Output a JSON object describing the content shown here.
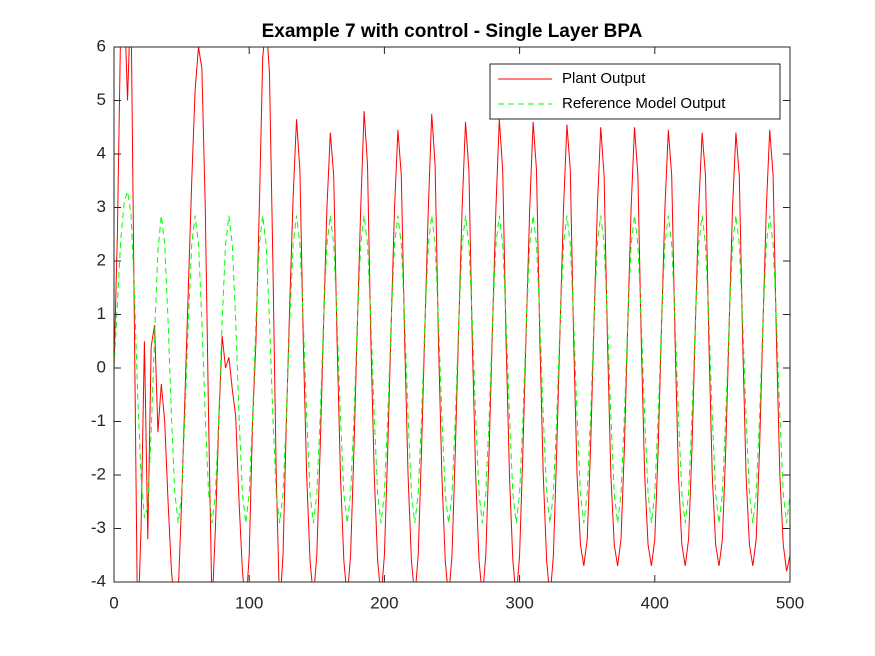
{
  "chart_data": {
    "type": "line",
    "title": "Example 7 with control - Single Layer BPA",
    "x": [
      0,
      2.5,
      5,
      7.5,
      10,
      12.5,
      15,
      17.5,
      20,
      22.5,
      25,
      27.5,
      30,
      32.5,
      35,
      37.5,
      40,
      42.5,
      45,
      47.5,
      50,
      52.5,
      55,
      57.5,
      60,
      62.5,
      65,
      67.5,
      70,
      72.5,
      75,
      77.5,
      80,
      82.5,
      85,
      87.5,
      90,
      92.5,
      95,
      97.5,
      100,
      102.5,
      105,
      107.5,
      110,
      112.5,
      115,
      117.5,
      120,
      122.5,
      125,
      127.5,
      130,
      132.5,
      135,
      137.5,
      140,
      142.5,
      145,
      147.5,
      150,
      152.5,
      155,
      157.5,
      160,
      162.5,
      165,
      167.5,
      170,
      172.5,
      175,
      177.5,
      180,
      182.5,
      185,
      187.5,
      190,
      192.5,
      195,
      197.5,
      200,
      202.5,
      205,
      207.5,
      210,
      212.5,
      215,
      217.5,
      220,
      222.5,
      225,
      227.5,
      230,
      232.5,
      235,
      237.5,
      240,
      242.5,
      245,
      247.5,
      250,
      252.5,
      255,
      257.5,
      260,
      262.5,
      265,
      267.5,
      270,
      272.5,
      275,
      277.5,
      280,
      282.5,
      285,
      287.5,
      290,
      292.5,
      295,
      297.5,
      300,
      302.5,
      305,
      307.5,
      310,
      312.5,
      315,
      317.5,
      320,
      322.5,
      325,
      327.5,
      330,
      332.5,
      335,
      337.5,
      340,
      342.5,
      345,
      347.5,
      350,
      352.5,
      355,
      357.5,
      360,
      362.5,
      365,
      367.5,
      370,
      372.5,
      375,
      377.5,
      380,
      382.5,
      385,
      387.5,
      390,
      392.5,
      395,
      397.5,
      400,
      402.5,
      405,
      407.5,
      410,
      412.5,
      415,
      417.5,
      420,
      422.5,
      425,
      427.5,
      430,
      432.5,
      435,
      437.5,
      440,
      442.5,
      445,
      447.5,
      450,
      452.5,
      455,
      457.5,
      460,
      462.5,
      465,
      467.5,
      470,
      472.5,
      475,
      477.5,
      480,
      482.5,
      485,
      487.5,
      490,
      492.5,
      495,
      497.5,
      500
    ],
    "series": [
      {
        "name": "Plant Output",
        "color": "#ff0000",
        "dash": "solid",
        "values": [
          0,
          2.5,
          6.5,
          7,
          5,
          7,
          1,
          -5,
          -3,
          0.5,
          -3.2,
          0.4,
          0.8,
          -1.2,
          -0.3,
          -1,
          -2.5,
          -3.8,
          -4.5,
          -4.2,
          -2.5,
          -0.5,
          1.5,
          3.5,
          5.2,
          6,
          5.6,
          3,
          -1,
          -4.5,
          -3,
          -1,
          0.6,
          0,
          0.2,
          -0.4,
          -0.9,
          -2.5,
          -3.8,
          -4.5,
          -3.5,
          -1,
          0.5,
          3,
          5.8,
          6.5,
          5.5,
          2,
          -2,
          -4.5,
          -3.5,
          -1,
          1.2,
          3.2,
          4.65,
          3.7,
          0.5,
          -2,
          -3.6,
          -4.3,
          -3.5,
          -1.5,
          0.8,
          3,
          4.4,
          3.6,
          0.5,
          -2,
          -3.6,
          -4.3,
          -3.5,
          -1.5,
          0.8,
          3,
          4.8,
          3.8,
          0.5,
          -2,
          -3.6,
          -4.3,
          -3.5,
          -1.5,
          0.8,
          3,
          4.45,
          3.6,
          0.5,
          -2,
          -3.6,
          -4.3,
          -3.5,
          -1.5,
          0.8,
          3,
          4.75,
          3.8,
          0.5,
          -2,
          -3.6,
          -4.3,
          -3.5,
          -1.5,
          0.8,
          3,
          4.6,
          3.7,
          0.5,
          -2,
          -3.6,
          -4.3,
          -3.5,
          -1.5,
          0.8,
          3,
          4.65,
          3.7,
          0.5,
          -2,
          -3.6,
          -4.3,
          -3.5,
          -1.5,
          0.8,
          3,
          4.6,
          3.7,
          0.5,
          -2,
          -3.6,
          -4.3,
          -3.5,
          -1.5,
          0.8,
          3,
          4.55,
          3.7,
          0.5,
          -2,
          -3.3,
          -3.7,
          -3.2,
          -1.5,
          0.8,
          3,
          4.5,
          3.6,
          0.5,
          -2,
          -3.3,
          -3.7,
          -3.2,
          -1.5,
          0.8,
          3,
          4.5,
          3.6,
          0.5,
          -2,
          -3.3,
          -3.7,
          -3.2,
          -1.5,
          0.8,
          3,
          4.45,
          3.6,
          0.5,
          -2,
          -3.3,
          -3.7,
          -3.2,
          -1.5,
          0.8,
          3,
          4.4,
          3.6,
          0.5,
          -2,
          -3.3,
          -3.7,
          -3.2,
          -1.5,
          0.8,
          3,
          4.4,
          3.6,
          0.5,
          -2,
          -3.3,
          -3.7,
          -3.2,
          -1.5,
          0.8,
          3,
          4.45,
          3.6,
          0.5,
          -2,
          -3.3,
          -3.8,
          -3.5
        ]
      },
      {
        "name": "Reference Model Output",
        "color": "#00ff00",
        "dash": "dashed",
        "values": [
          0,
          1.2,
          2.4,
          3.1,
          3.3,
          2.9,
          1.5,
          -0.5,
          -2.0,
          -2.8,
          -2.6,
          -1.2,
          0.6,
          2.2,
          2.85,
          2.31,
          0.88,
          -0.9,
          -2.35,
          -2.9,
          -2.35,
          -0.9,
          0.88,
          2.31,
          2.85,
          2.31,
          0.88,
          -0.9,
          -2.35,
          -2.9,
          -2.35,
          -0.9,
          0.88,
          2.31,
          2.85,
          2.31,
          0.88,
          -0.9,
          -2.35,
          -2.9,
          -2.35,
          -0.9,
          0.88,
          2.31,
          2.85,
          2.31,
          0.88,
          -0.9,
          -2.35,
          -2.9,
          -2.35,
          -0.9,
          0.88,
          2.31,
          2.85,
          2.31,
          0.88,
          -0.9,
          -2.35,
          -2.9,
          -2.35,
          -0.9,
          0.88,
          2.31,
          2.85,
          2.31,
          0.88,
          -0.9,
          -2.35,
          -2.9,
          -2.35,
          -0.9,
          0.88,
          2.31,
          2.85,
          2.31,
          0.88,
          -0.9,
          -2.35,
          -2.9,
          -2.35,
          -0.9,
          0.88,
          2.31,
          2.85,
          2.31,
          0.88,
          -0.9,
          -2.35,
          -2.9,
          -2.35,
          -0.9,
          0.88,
          2.31,
          2.85,
          2.31,
          0.88,
          -0.9,
          -2.35,
          -2.9,
          -2.35,
          -0.9,
          0.88,
          2.31,
          2.85,
          2.31,
          0.88,
          -0.9,
          -2.35,
          -2.9,
          -2.35,
          -0.9,
          0.88,
          2.31,
          2.85,
          2.31,
          0.88,
          -0.9,
          -2.35,
          -2.9,
          -2.35,
          -0.9,
          0.88,
          2.31,
          2.85,
          2.31,
          0.88,
          -0.9,
          -2.35,
          -2.9,
          -2.35,
          -0.9,
          0.88,
          2.31,
          2.85,
          2.31,
          0.88,
          -0.9,
          -2.35,
          -2.9,
          -2.35,
          -0.9,
          0.88,
          2.31,
          2.85,
          2.31,
          0.88,
          -0.9,
          -2.35,
          -2.9,
          -2.35,
          -0.9,
          0.88,
          2.31,
          2.85,
          2.31,
          0.88,
          -0.9,
          -2.35,
          -2.9,
          -2.35,
          -0.9,
          0.88,
          2.31,
          2.85,
          2.31,
          0.88,
          -0.9,
          -2.35,
          -2.9,
          -2.35,
          -0.9,
          0.88,
          2.31,
          2.85,
          2.31,
          0.88,
          -0.9,
          -2.35,
          -2.9,
          -2.35,
          -0.9,
          0.88,
          2.31,
          2.85,
          2.31,
          0.88,
          -0.9,
          -2.35,
          -2.9,
          -2.35,
          -0.9,
          0.88,
          2.31,
          2.85,
          2.31,
          0.88,
          -0.9,
          -2.35,
          -2.9,
          -2.35
        ]
      }
    ],
    "xlim": [
      0,
      500
    ],
    "xticks": [
      0,
      100,
      200,
      300,
      400,
      500
    ],
    "ylim": [
      -4,
      6
    ],
    "yticks": [
      -4,
      -3,
      -2,
      -1,
      0,
      1,
      2,
      3,
      4,
      5,
      6
    ],
    "grid": false,
    "legend": "northeast"
  }
}
